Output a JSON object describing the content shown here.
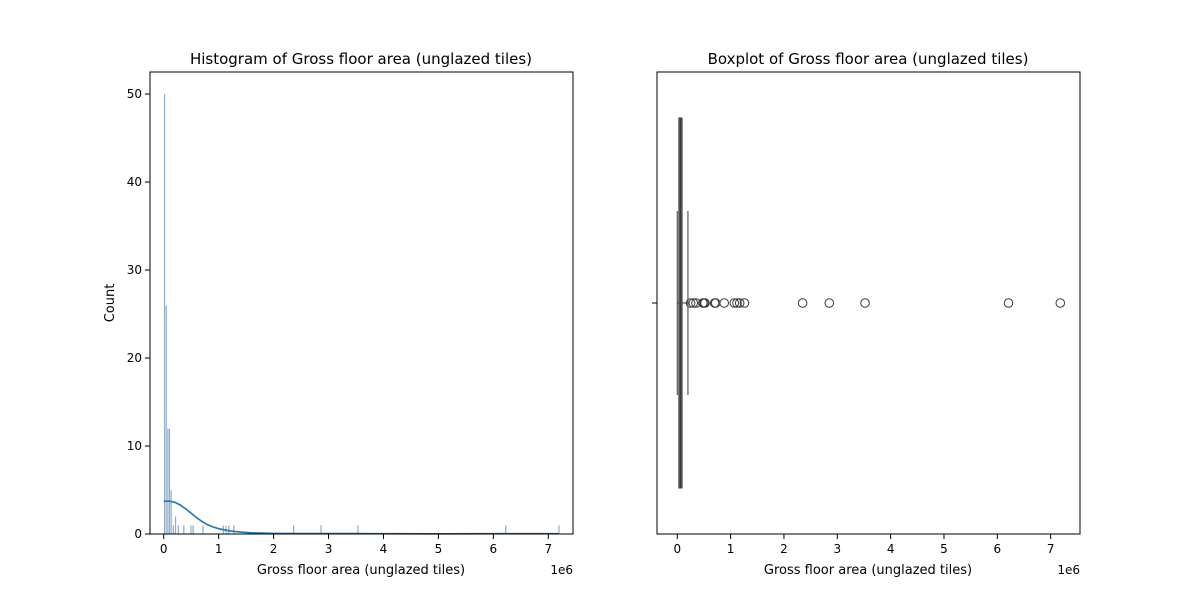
{
  "chart_data": [
    {
      "type": "histogram",
      "title": "Histogram of Gross floor area (unglazed tiles)",
      "xlabel": "Gross floor area (unglazed tiles)",
      "ylabel": "Count",
      "x_offset_label": "1e6",
      "xlim": [
        -0.25,
        7.45
      ],
      "ylim": [
        0,
        52.5
      ],
      "x_ticks": [
        0,
        1,
        2,
        3,
        4,
        5,
        6,
        7
      ],
      "y_ticks": [
        0,
        10,
        20,
        30,
        40,
        50
      ],
      "bar_color": "#7a9fc1",
      "kde_color": "#1f77b4",
      "bins": [
        {
          "x": 0.0,
          "count": 50
        },
        {
          "x": 0.03,
          "count": 26
        },
        {
          "x": 0.06,
          "count": 12
        },
        {
          "x": 0.09,
          "count": 12
        },
        {
          "x": 0.12,
          "count": 5
        },
        {
          "x": 0.16,
          "count": 1
        },
        {
          "x": 0.2,
          "count": 2
        },
        {
          "x": 0.25,
          "count": 1
        },
        {
          "x": 0.35,
          "count": 1
        },
        {
          "x": 0.48,
          "count": 1
        },
        {
          "x": 0.52,
          "count": 1
        },
        {
          "x": 0.7,
          "count": 1
        },
        {
          "x": 1.07,
          "count": 1
        },
        {
          "x": 1.12,
          "count": 1
        },
        {
          "x": 1.17,
          "count": 1
        },
        {
          "x": 1.26,
          "count": 1
        },
        {
          "x": 2.35,
          "count": 1
        },
        {
          "x": 2.85,
          "count": 1
        },
        {
          "x": 3.52,
          "count": 1
        },
        {
          "x": 6.21,
          "count": 1
        },
        {
          "x": 7.18,
          "count": 1
        }
      ],
      "kde": {
        "x": [
          0.0,
          0.1,
          0.2,
          0.3,
          0.4,
          0.5,
          0.6,
          0.7,
          0.8,
          0.9,
          1.0,
          1.2,
          1.4,
          1.6,
          1.8,
          2.0,
          2.5,
          3.0,
          3.5,
          4.0,
          5.0,
          6.0,
          7.0,
          7.18
        ],
        "y": [
          3.7,
          3.75,
          3.6,
          3.3,
          2.85,
          2.35,
          1.85,
          1.4,
          1.05,
          0.8,
          0.6,
          0.35,
          0.22,
          0.14,
          0.1,
          0.07,
          0.05,
          0.04,
          0.04,
          0.03,
          0.02,
          0.03,
          0.03,
          0.03
        ]
      }
    },
    {
      "type": "boxplot",
      "title": "Boxplot of Gross floor area (unglazed tiles)",
      "xlabel": "Gross floor area (unglazed tiles)",
      "x_offset_label": "1e6",
      "xlim": [
        -0.38,
        7.55
      ],
      "x_ticks": [
        0,
        1,
        2,
        3,
        4,
        5,
        6,
        7
      ],
      "box_color": "#1f77b4",
      "q1": 0.03,
      "median": 0.06,
      "q3": 0.09,
      "whisker_low": 0.0,
      "whisker_high": 0.2,
      "outliers": [
        0.25,
        0.3,
        0.35,
        0.48,
        0.5,
        0.52,
        0.7,
        0.72,
        0.88,
        1.07,
        1.12,
        1.17,
        1.26,
        2.35,
        2.85,
        3.52,
        6.21,
        7.18
      ]
    }
  ]
}
